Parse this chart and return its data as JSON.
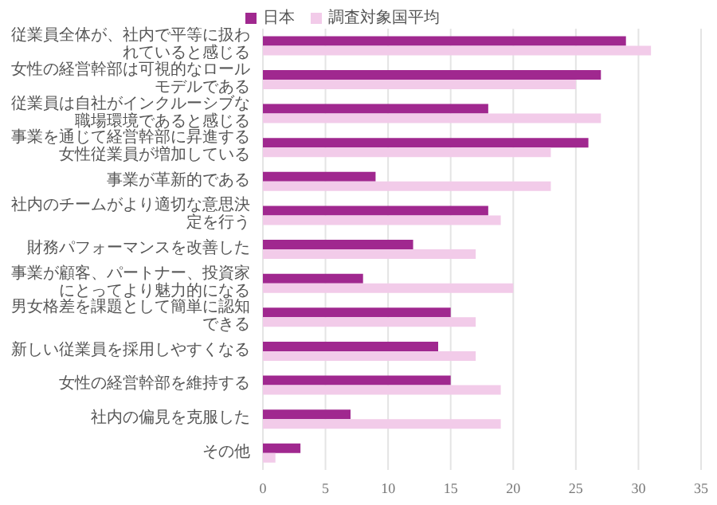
{
  "chart_data": {
    "type": "bar",
    "orientation": "horizontal",
    "categories": [
      "従業員全体が、社内で平等に扱われていると感じる",
      "女性の経営幹部は可視的なロールモデルである",
      "従業員は自社がインクルーシブな職場環境であると感じる",
      "事業を通じて経営幹部に昇進する女性従業員が増加している",
      "事業が革新的である",
      "社内のチームがより適切な意思決定を行う",
      "財務パフォーマンスを改善した",
      "事業が顧客、パートナー、投資家にとってより魅力的になる",
      "男女格差を課題として簡単に認知できる",
      "新しい従業員を採用しやすくなる",
      "女性の経営幹部を維持する",
      "社内の偏見を克服した",
      "その他"
    ],
    "series": [
      {
        "name": "日本",
        "color": "#a0288f",
        "values": [
          29,
          27,
          18,
          26,
          9,
          18,
          12,
          8,
          15,
          14,
          15,
          7,
          3
        ]
      },
      {
        "name": "調査対象国平均",
        "color": "#f2cbe9",
        "values": [
          31,
          25,
          27,
          23,
          23,
          19,
          17,
          20,
          17,
          17,
          19,
          19,
          1
        ]
      }
    ],
    "xlim": [
      0,
      35
    ],
    "xticks": [
      0,
      5,
      10,
      15,
      20,
      25,
      30,
      35
    ],
    "grid": "x",
    "legend": "top"
  }
}
